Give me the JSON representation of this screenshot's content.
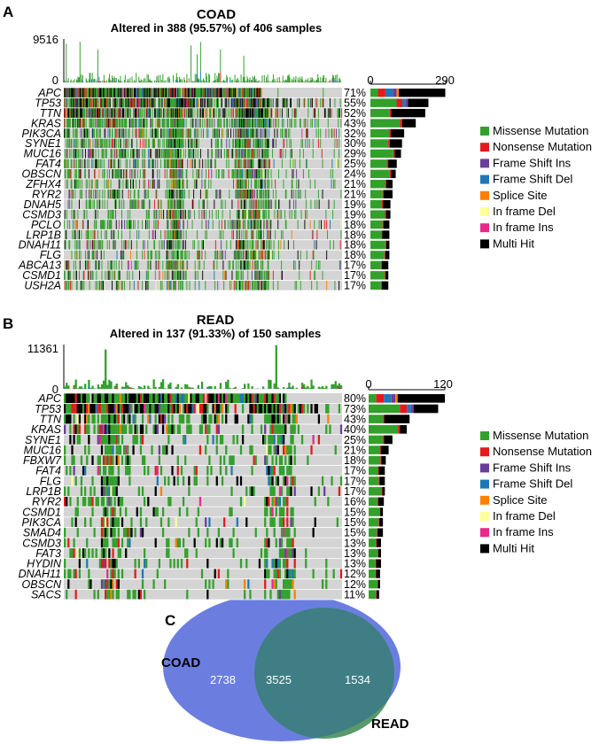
{
  "legend_items": [
    {
      "label": "Missense Mutation",
      "color": "#33a02c"
    },
    {
      "label": "Nonsense Mutation",
      "color": "#e31a1c"
    },
    {
      "label": "Frame Shift Ins",
      "color": "#6a3d9a"
    },
    {
      "label": "Frame Shift Del",
      "color": "#1f78b4"
    },
    {
      "label": "Splice Site",
      "color": "#ff7f00"
    },
    {
      "label": "In frame Del",
      "color": "#ffff99"
    },
    {
      "label": "In frame Ins",
      "color": "#e7298a"
    },
    {
      "label": "Multi Hit",
      "color": "#000000"
    }
  ],
  "chart_data": [
    {
      "type": "oncoplot",
      "panel_label": "A",
      "title": "COAD",
      "subtitle": "Altered in 388 (95.57%) of 406 samples",
      "tmb_axis": {
        "max_label": "9516",
        "min_label": "0"
      },
      "gene_count_axis": {
        "min_label": "0",
        "max_label": "290",
        "max": 290
      },
      "genes": [
        "APC",
        "TP53",
        "TTN",
        "KRAS",
        "PIK3CA",
        "SYNE1",
        "MUC16",
        "FAT4",
        "OBSCN",
        "ZFHX4",
        "RYR2",
        "DNAH5",
        "CSMD3",
        "PCLO",
        "LRP1B",
        "DNAH11",
        "FLG",
        "ABCA13",
        "CSMD1",
        "USH2A"
      ],
      "percent_labels": [
        "71%",
        "55%",
        "52%",
        "43%",
        "32%",
        "30%",
        "29%",
        "25%",
        "24%",
        "21%",
        "21%",
        "19%",
        "19%",
        "18%",
        "18%",
        "18%",
        "18%",
        "17%",
        "17%",
        "17%"
      ],
      "percent": [
        71,
        55,
        52,
        43,
        32,
        30,
        29,
        25,
        24,
        21,
        21,
        19,
        19,
        18,
        18,
        18,
        18,
        17,
        17,
        17
      ]
    },
    {
      "type": "oncoplot",
      "panel_label": "B",
      "title": "READ",
      "subtitle": "Altered in 137 (91.33%) of 150 samples",
      "tmb_axis": {
        "max_label": "11361",
        "min_label": "0"
      },
      "gene_count_axis": {
        "min_label": "0",
        "max_label": "120",
        "max": 120
      },
      "genes": [
        "APC",
        "TP53",
        "TTN",
        "KRAS",
        "SYNE1",
        "MUC16",
        "FBXW7",
        "FAT4",
        "FLG",
        "LRP1B",
        "RYR2",
        "CSMD1",
        "PIK3CA",
        "SMAD4",
        "CSMD3",
        "FAT3",
        "HYDIN",
        "DNAH11",
        "OBSCN",
        "SACS"
      ],
      "percent_labels": [
        "80%",
        "73%",
        "43%",
        "40%",
        "25%",
        "21%",
        "18%",
        "17%",
        "17%",
        "17%",
        "16%",
        "15%",
        "15%",
        "15%",
        "13%",
        "13%",
        "13%",
        "12%",
        "12%",
        "11%"
      ],
      "percent": [
        80,
        73,
        43,
        40,
        25,
        21,
        18,
        17,
        17,
        17,
        16,
        15,
        15,
        15,
        13,
        13,
        13,
        12,
        12,
        11
      ]
    },
    {
      "type": "venn",
      "panel_label": "C",
      "sets": [
        {
          "name": "COAD",
          "color": "#6b7ee0",
          "unique": "2738"
        },
        {
          "name": "READ",
          "color": "#5a9a6a",
          "unique": "1534"
        }
      ],
      "intersection": "3525",
      "intersection_color": "#3f7e84"
    }
  ]
}
